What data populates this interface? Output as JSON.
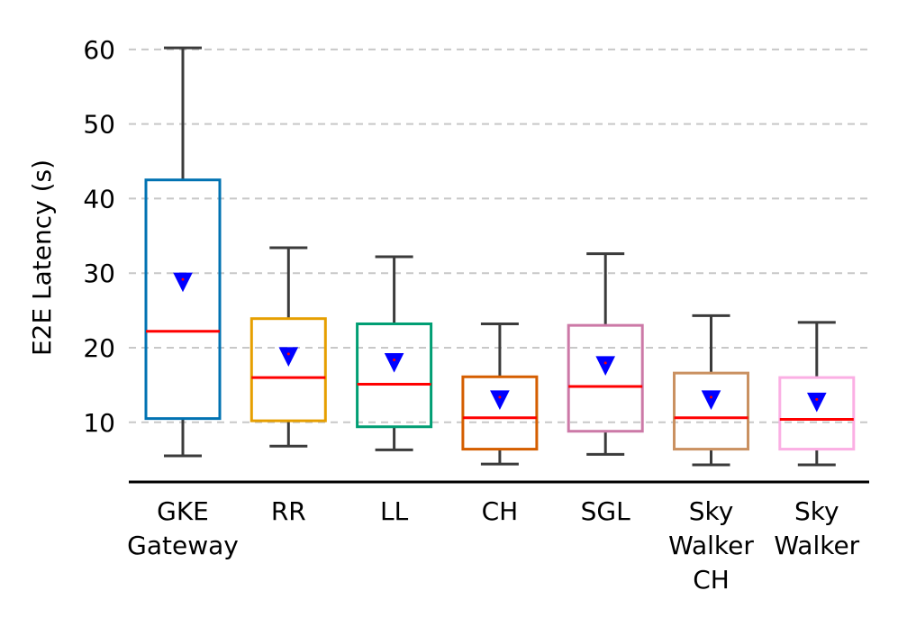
{
  "chart_data": {
    "type": "box",
    "ylabel": "E2E Latency (s)",
    "xlabel": "",
    "ylim": [
      2,
      63
    ],
    "yticks": [
      10,
      20,
      30,
      40,
      50,
      60
    ],
    "grid": "y-dashed",
    "median_color": "#ff0000",
    "mean_marker_color": "#0000ff",
    "categories": [
      {
        "label": [
          "GKE",
          "Gateway"
        ],
        "color": "#0072b2",
        "whisker_low": 5.5,
        "q1": 10.5,
        "median": 22.2,
        "q3": 42.5,
        "whisker_high": 60.2,
        "mean": 28.8
      },
      {
        "label": [
          "RR"
        ],
        "color": "#e69f00",
        "whisker_low": 6.8,
        "q1": 10.2,
        "median": 16.0,
        "q3": 23.9,
        "whisker_high": 33.4,
        "mean": 18.8
      },
      {
        "label": [
          "LL"
        ],
        "color": "#009e73",
        "whisker_low": 6.3,
        "q1": 9.4,
        "median": 15.1,
        "q3": 23.2,
        "whisker_high": 32.2,
        "mean": 18.0
      },
      {
        "label": [
          "CH"
        ],
        "color": "#d55e00",
        "whisker_low": 4.4,
        "q1": 6.4,
        "median": 10.6,
        "q3": 16.1,
        "whisker_high": 23.2,
        "mean": 13.0
      },
      {
        "label": [
          "SGL"
        ],
        "color": "#cc79a7",
        "whisker_low": 5.7,
        "q1": 8.8,
        "median": 14.8,
        "q3": 23.0,
        "whisker_high": 32.6,
        "mean": 17.6
      },
      {
        "label": [
          "Sky",
          "Walker",
          "CH"
        ],
        "color": "#ca9161",
        "whisker_low": 4.3,
        "q1": 6.4,
        "median": 10.6,
        "q3": 16.6,
        "whisker_high": 24.3,
        "mean": 13.0
      },
      {
        "label": [
          "Sky",
          "Walker"
        ],
        "color": "#fbafe4",
        "whisker_low": 4.3,
        "q1": 6.4,
        "median": 10.4,
        "q3": 16.0,
        "whisker_high": 23.4,
        "mean": 12.7
      }
    ]
  }
}
